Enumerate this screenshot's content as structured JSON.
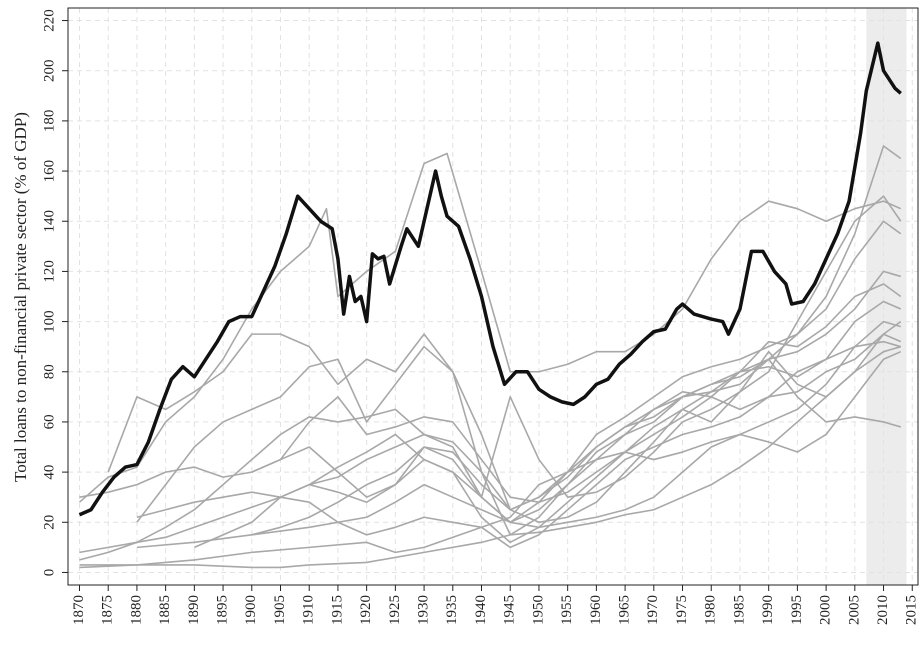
{
  "chart_data": {
    "type": "line",
    "y_label": "Total loans to non-financial private sector (% of GDP)",
    "xlim": [
      1868,
      2016
    ],
    "ylim": [
      -5,
      225
    ],
    "xticks": [
      1870,
      1875,
      1880,
      1885,
      1890,
      1895,
      1900,
      1905,
      1910,
      1915,
      1920,
      1925,
      1930,
      1935,
      1940,
      1945,
      1950,
      1955,
      1960,
      1965,
      1970,
      1975,
      1980,
      1985,
      1990,
      1995,
      2000,
      2005,
      2010,
      2015
    ],
    "yticks": [
      0,
      20,
      40,
      60,
      80,
      100,
      120,
      140,
      160,
      180,
      200,
      220
    ],
    "grid": true,
    "shade": [
      2007,
      2014
    ],
    "shade_color": "#ececec",
    "series": [
      {
        "color": "#a8a8a8",
        "x": [
          1870,
          1875,
          1880,
          1885,
          1890,
          1895,
          1900,
          1905,
          1910,
          1913,
          1915,
          1920,
          1925,
          1930,
          1934,
          1940,
          1945,
          1950,
          1955,
          1960,
          1965,
          1970,
          1975,
          1980,
          1985,
          1990,
          1995,
          2000,
          2005,
          2010,
          2013
        ],
        "values": [
          28,
          38,
          42,
          60,
          70,
          85,
          105,
          120,
          130,
          145,
          110,
          120,
          128,
          163,
          167,
          120,
          80,
          80,
          83,
          88,
          88,
          95,
          105,
          125,
          140,
          148,
          145,
          140,
          145,
          148,
          145
        ]
      },
      {
        "color": "#a8a8a8",
        "x": [
          1875,
          1880,
          1885,
          1890,
          1895,
          1900,
          1905,
          1910,
          1915,
          1920,
          1925,
          1930,
          1935,
          1940,
          1945,
          1950,
          1955,
          1960,
          1965,
          1970,
          1975,
          1980,
          1985,
          1990,
          1995,
          2000,
          2005,
          2010,
          2013
        ],
        "values": [
          40,
          70,
          65,
          72,
          80,
          95,
          95,
          90,
          75,
          85,
          80,
          95,
          80,
          55,
          25,
          30,
          40,
          55,
          62,
          70,
          78,
          82,
          85,
          90,
          95,
          110,
          135,
          170,
          165
        ]
      },
      {
        "color": "#a8a8a8",
        "x": [
          1880,
          1885,
          1890,
          1895,
          1900,
          1905,
          1910,
          1915,
          1920,
          1925,
          1930,
          1935,
          1940,
          1945,
          1950,
          1955,
          1960,
          1965,
          1970,
          1975,
          1980,
          1985,
          1990,
          1995,
          2000,
          2005,
          2010,
          2013
        ],
        "values": [
          20,
          35,
          50,
          60,
          65,
          70,
          82,
          85,
          60,
          75,
          90,
          80,
          40,
          15,
          22,
          35,
          48,
          55,
          60,
          70,
          75,
          80,
          85,
          95,
          105,
          125,
          140,
          135
        ]
      },
      {
        "color": "#a8a8a8",
        "x": [
          1870,
          1875,
          1880,
          1885,
          1890,
          1895,
          1900,
          1905,
          1910,
          1915,
          1920,
          1925,
          1930,
          1935,
          1940,
          1945,
          1950,
          1955,
          1960,
          1965,
          1970,
          1975,
          1980,
          1985,
          1990,
          1995,
          2000,
          2005,
          2010,
          2013
        ],
        "values": [
          5,
          8,
          12,
          18,
          25,
          35,
          45,
          55,
          62,
          60,
          62,
          65,
          55,
          50,
          30,
          20,
          25,
          35,
          45,
          55,
          65,
          70,
          72,
          75,
          85,
          88,
          95,
          105,
          120,
          118
        ]
      },
      {
        "color": "#a8a8a8",
        "x": [
          1870,
          1875,
          1880,
          1885,
          1890,
          1895,
          1900,
          1905,
          1910,
          1915,
          1920,
          1925,
          1930,
          1935,
          1940,
          1945,
          1950,
          1955,
          1960,
          1965,
          1970,
          1975,
          1980,
          1985,
          1990,
          1995,
          2000,
          2005,
          2010,
          2013
        ],
        "values": [
          30,
          32,
          35,
          40,
          42,
          38,
          40,
          45,
          50,
          40,
          30,
          35,
          50,
          45,
          30,
          20,
          28,
          40,
          50,
          58,
          65,
          72,
          70,
          65,
          70,
          80,
          85,
          90,
          92,
          90
        ]
      },
      {
        "color": "#a8a8a8",
        "x": [
          1870,
          1880,
          1890,
          1900,
          1905,
          1910,
          1920,
          1930,
          1940,
          1945,
          1950,
          1955,
          1960,
          1965,
          1970,
          1975,
          1980,
          1985,
          1990,
          1995,
          2000,
          2005,
          2010,
          2013
        ],
        "values": [
          3,
          3,
          3,
          2,
          2,
          3,
          4,
          8,
          12,
          15,
          16,
          18,
          20,
          23,
          25,
          30,
          35,
          42,
          50,
          60,
          70,
          80,
          88,
          90
        ]
      },
      {
        "color": "#a8a8a8",
        "x": [
          1880,
          1885,
          1890,
          1895,
          1900,
          1905,
          1910,
          1915,
          1920,
          1925,
          1930,
          1935,
          1940,
          1945,
          1950,
          1955,
          1960,
          1965,
          1970,
          1975,
          1980,
          1985,
          1990,
          1995,
          2000,
          2005,
          2010,
          2013
        ],
        "values": [
          22,
          25,
          28,
          30,
          32,
          30,
          28,
          20,
          15,
          18,
          22,
          20,
          18,
          10,
          15,
          25,
          35,
          45,
          50,
          55,
          58,
          62,
          70,
          72,
          80,
          85,
          95,
          100
        ]
      },
      {
        "color": "#a8a8a8",
        "x": [
          1890,
          1895,
          1900,
          1905,
          1910,
          1915,
          1920,
          1925,
          1930,
          1935,
          1940,
          1945,
          1950,
          1955,
          1960,
          1965,
          1970,
          1975,
          1980,
          1985,
          1990,
          1995,
          2000,
          2005,
          2010,
          2013
        ],
        "values": [
          10,
          15,
          20,
          30,
          35,
          32,
          28,
          35,
          45,
          40,
          22,
          12,
          18,
          28,
          38,
          48,
          58,
          65,
          60,
          72,
          88,
          75,
          70,
          80,
          95,
          92
        ]
      },
      {
        "color": "#a8a8a8",
        "x": [
          1900,
          1905,
          1910,
          1915,
          1920,
          1925,
          1930,
          1935,
          1940,
          1945,
          1950,
          1955,
          1960,
          1965,
          1970,
          1975,
          1980,
          1985,
          1990,
          1995,
          2000,
          2005,
          2010,
          2013
        ],
        "values": [
          15,
          18,
          22,
          28,
          35,
          40,
          50,
          48,
          35,
          25,
          20,
          22,
          28,
          40,
          52,
          65,
          72,
          80,
          82,
          78,
          85,
          100,
          108,
          105
        ]
      },
      {
        "color": "#a8a8a8",
        "x": [
          1870,
          1875,
          1880,
          1885,
          1890,
          1895,
          1900,
          1905,
          1910,
          1915,
          1920,
          1925,
          1930,
          1935,
          1940,
          1945,
          1950,
          1955,
          1960,
          1965,
          1970,
          1975,
          1980,
          1985,
          1990,
          1995,
          2000,
          2005,
          2010,
          2013
        ],
        "values": [
          8,
          10,
          12,
          14,
          18,
          22,
          26,
          30,
          35,
          38,
          45,
          50,
          55,
          52,
          40,
          25,
          30,
          38,
          50,
          58,
          62,
          70,
          75,
          78,
          85,
          70,
          60,
          62,
          60,
          58
        ]
      },
      {
        "color": "#a8a8a8",
        "x": [
          1880,
          1890,
          1900,
          1910,
          1920,
          1925,
          1930,
          1935,
          1940,
          1945,
          1950,
          1955,
          1960,
          1965,
          1970,
          1975,
          1980,
          1985,
          1990,
          1995,
          2000,
          2005,
          2010,
          2013
        ],
        "values": [
          10,
          12,
          15,
          18,
          22,
          28,
          35,
          30,
          25,
          20,
          18,
          20,
          22,
          25,
          30,
          40,
          50,
          55,
          52,
          48,
          55,
          70,
          85,
          88
        ]
      },
      {
        "color": "#a8a8a8",
        "x": [
          1900,
          1905,
          1910,
          1915,
          1920,
          1925,
          1930,
          1935,
          1940,
          1945,
          1950,
          1955,
          1960,
          1965,
          1970,
          1975,
          1980,
          1985,
          1990,
          1995,
          2000,
          2005,
          2010,
          2013
        ],
        "values": [
          40,
          45,
          60,
          70,
          55,
          58,
          62,
          60,
          45,
          30,
          28,
          32,
          40,
          48,
          55,
          62,
          70,
          80,
          92,
          90,
          98,
          110,
          115,
          110
        ]
      },
      {
        "color": "#a8a8a8",
        "x": [
          1870,
          1880,
          1890,
          1900,
          1910,
          1920,
          1925,
          1930,
          1940,
          1945,
          1950,
          1955,
          1960,
          1965,
          1970,
          1975,
          1980,
          1985,
          1990,
          1995,
          2000,
          2005,
          2010,
          2013
        ],
        "values": [
          2,
          3,
          5,
          8,
          10,
          12,
          8,
          10,
          18,
          22,
          35,
          40,
          45,
          48,
          45,
          48,
          52,
          55,
          60,
          65,
          75,
          90,
          100,
          98
        ]
      },
      {
        "color": "#a8a8a8",
        "x": [
          1910,
          1915,
          1920,
          1925,
          1930,
          1935,
          1940,
          1945,
          1950,
          1955,
          1960,
          1965,
          1970,
          1975,
          1980,
          1985,
          1990,
          1995,
          2000,
          2005,
          2010,
          2013
        ],
        "values": [
          35,
          42,
          48,
          55,
          45,
          40,
          30,
          70,
          45,
          30,
          32,
          38,
          48,
          60,
          65,
          72,
          80,
          100,
          120,
          140,
          150,
          140
        ]
      },
      {
        "color": "#111111",
        "width": 3.5,
        "x": [
          1870,
          1872,
          1874,
          1876,
          1878,
          1880,
          1882,
          1884,
          1886,
          1888,
          1890,
          1892,
          1894,
          1896,
          1898,
          1900,
          1902,
          1904,
          1906,
          1908,
          1910,
          1912,
          1914,
          1915,
          1916,
          1917,
          1918,
          1919,
          1920,
          1921,
          1922,
          1923,
          1924,
          1926,
          1927,
          1929,
          1930,
          1932,
          1933,
          1934,
          1936,
          1938,
          1940,
          1942,
          1944,
          1946,
          1948,
          1950,
          1952,
          1954,
          1956,
          1958,
          1960,
          1962,
          1964,
          1966,
          1968,
          1970,
          1972,
          1974,
          1975,
          1977,
          1980,
          1982,
          1983,
          1985,
          1987,
          1989,
          1991,
          1993,
          1994,
          1996,
          1998,
          2000,
          2002,
          2004,
          2006,
          2007,
          2009,
          2010,
          2012,
          2013
        ],
        "values": [
          23,
          25,
          32,
          38,
          42,
          43,
          52,
          65,
          77,
          82,
          78,
          85,
          92,
          100,
          102,
          102,
          112,
          122,
          135,
          150,
          145,
          140,
          137,
          125,
          103,
          118,
          108,
          110,
          100,
          127,
          125,
          126,
          115,
          130,
          137,
          130,
          140,
          160,
          150,
          142,
          138,
          125,
          110,
          90,
          75,
          80,
          80,
          73,
          70,
          68,
          67,
          70,
          75,
          77,
          83,
          87,
          92,
          96,
          97,
          105,
          107,
          103,
          101,
          100,
          95,
          105,
          128,
          128,
          120,
          115,
          107,
          108,
          115,
          125,
          135,
          148,
          175,
          192,
          211,
          200,
          193,
          191
        ]
      }
    ]
  }
}
